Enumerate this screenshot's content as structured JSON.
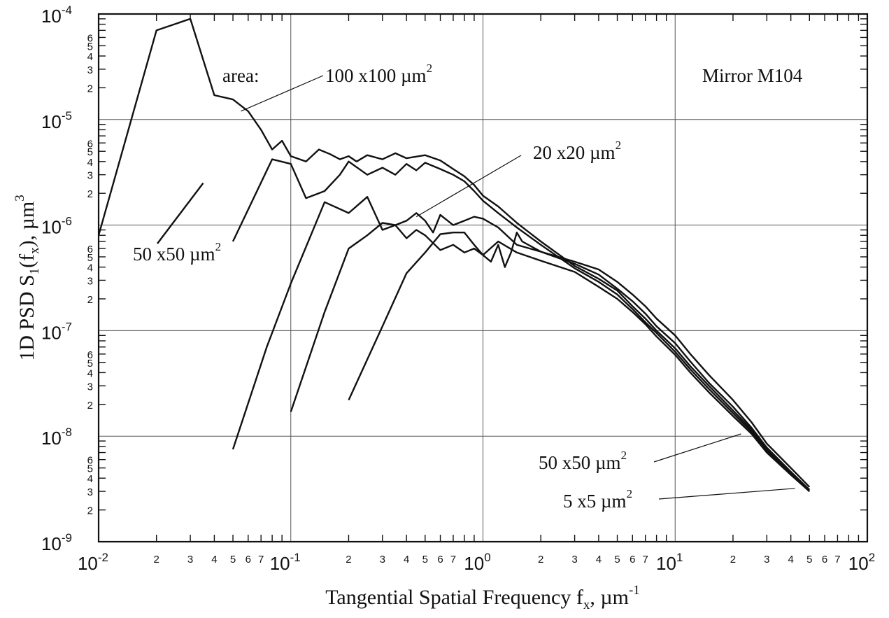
{
  "chart_data": {
    "type": "line",
    "title": "",
    "xscale": "log",
    "yscale": "log",
    "xlim": [
      0.01,
      100
    ],
    "ylim": [
      1e-09,
      0.0001
    ],
    "grid": "major decades",
    "x_tick_labels": [
      {
        "base": "10",
        "exp": "-2",
        "value": 0.01
      },
      {
        "base": "10",
        "exp": "-1",
        "value": 0.1
      },
      {
        "base": "10",
        "exp": "0",
        "value": 1
      },
      {
        "base": "10",
        "exp": "1",
        "value": 10
      },
      {
        "base": "10",
        "exp": "2",
        "value": 100
      }
    ],
    "y_tick_labels": [
      {
        "base": "10",
        "exp": "-9",
        "value": 1e-09
      },
      {
        "base": "10",
        "exp": "-8",
        "value": 1e-08
      },
      {
        "base": "10",
        "exp": "-7",
        "value": 1e-07
      },
      {
        "base": "10",
        "exp": "-6",
        "value": 1e-06
      },
      {
        "base": "10",
        "exp": "-5",
        "value": 1e-05
      },
      {
        "base": "10",
        "exp": "-4",
        "value": 0.0001
      }
    ],
    "x_minor_labels": [
      "2",
      "3",
      "4",
      "5",
      "6",
      "7"
    ],
    "y_minor_labels": [
      "2",
      "3",
      "5"
    ],
    "xlabel": {
      "text": "Tangential Spatial Frequency f",
      "sub": "x",
      "tail": ", µm",
      "sup": "-1"
    },
    "ylabel": {
      "a": "1D PSD S",
      "sub1": "1",
      "b": "(f",
      "sub2": "x",
      "c": "), µm",
      "sup": "3"
    },
    "annotations": {
      "inset_label": "Mirror M104",
      "area_label": "area:",
      "label_100": {
        "text": "100 x100 µm",
        "sup": "2"
      },
      "label_50_top": {
        "text": "50 x50 µm",
        "sup": "2"
      },
      "label_20": {
        "text": "20 x20 µm",
        "sup": "2"
      },
      "label_50_bottom": {
        "text": "50 x50 µm",
        "sup": "2"
      },
      "label_5": {
        "text": "5 x5 µm",
        "sup": "2"
      }
    },
    "series": [
      {
        "x": [
          0.01,
          0.02,
          0.03,
          0.04,
          0.05,
          0.06,
          0.07,
          0.08,
          0.09,
          0.1,
          0.12,
          0.14,
          0.16,
          0.18,
          0.2,
          0.22,
          0.25,
          0.3,
          0.35,
          0.4,
          0.5,
          0.6,
          0.7,
          0.8,
          0.9,
          1.0,
          1.2,
          1.5,
          2,
          3,
          4,
          5,
          6,
          7,
          8,
          10,
          12,
          15,
          20,
          25,
          30,
          40,
          50
        ],
        "y": [
          8e-07,
          7e-05,
          9e-05,
          1.7e-05,
          1.55e-05,
          1.2e-05,
          8e-06,
          5.2e-06,
          6.3e-06,
          4.5e-06,
          4e-06,
          5.2e-06,
          4.7e-06,
          4.2e-06,
          4.5e-06,
          4e-06,
          4.6e-06,
          4.2e-06,
          4.8e-06,
          4.3e-06,
          4.6e-06,
          4.1e-06,
          3.4e-06,
          2.9e-06,
          2.4e-06,
          1.9e-06,
          1.5e-06,
          1.05e-06,
          7e-07,
          4.1e-07,
          3.1e-07,
          2.4e-07,
          1.7e-07,
          1.3e-07,
          1e-07,
          6.8e-08,
          4.6e-08,
          3e-08,
          1.75e-08,
          1.15e-08,
          7.5e-09,
          4.5e-09,
          3.1e-09
        ]
      },
      {
        "x": [
          0.05,
          0.08,
          0.1,
          0.12,
          0.15,
          0.18,
          0.2,
          0.25,
          0.3,
          0.35,
          0.4,
          0.45,
          0.5,
          0.6,
          0.7,
          0.8,
          0.9,
          1.0,
          1.2,
          1.5,
          2,
          3,
          4,
          5,
          6,
          7,
          8,
          10,
          12,
          15,
          20,
          25,
          30,
          40,
          50
        ],
        "y": [
          7e-07,
          4.2e-06,
          3.8e-06,
          1.8e-06,
          2.1e-06,
          3e-06,
          4e-06,
          3e-06,
          3.5e-06,
          3e-06,
          3.8e-06,
          3.3e-06,
          3.9e-06,
          3.4e-06,
          3e-06,
          2.6e-06,
          2.1e-06,
          1.7e-06,
          1.3e-06,
          9.5e-07,
          6.5e-07,
          3.9e-07,
          2.9e-07,
          2.2e-07,
          1.6e-07,
          1.2e-07,
          9.5e-08,
          6.3e-08,
          4.3e-08,
          2.8e-08,
          1.65e-08,
          1.1e-08,
          7.2e-09,
          4.4e-09,
          3e-09
        ]
      },
      {
        "x": [
          0.05,
          0.075,
          0.1,
          0.15,
          0.2,
          0.25,
          0.3,
          0.35,
          0.4,
          0.45,
          0.5,
          0.6,
          0.7,
          0.8,
          0.9,
          1.0,
          1.2,
          1.5,
          2,
          3,
          4,
          5,
          6,
          7,
          8,
          10,
          12,
          15,
          20,
          25,
          30,
          40,
          50
        ],
        "y": [
          7.5e-09,
          7e-08,
          2.8e-07,
          1.65e-06,
          1.3e-06,
          1.85e-06,
          9e-07,
          1e-06,
          7.5e-07,
          9e-07,
          8e-07,
          5.8e-07,
          6.5e-07,
          5.5e-07,
          6e-07,
          5.2e-07,
          7e-07,
          5.5e-07,
          4.6e-07,
          3.6e-07,
          2.6e-07,
          2e-07,
          1.5e-07,
          1.15e-07,
          8.8e-08,
          5.9e-08,
          4e-08,
          2.6e-08,
          1.55e-08,
          1.05e-08,
          7e-09,
          4.3e-09,
          3e-09
        ]
      },
      {
        "x": [
          0.1,
          0.15,
          0.2,
          0.25,
          0.3,
          0.35,
          0.4,
          0.45,
          0.5,
          0.55,
          0.6,
          0.7,
          0.8,
          0.9,
          1.0,
          1.2,
          1.5,
          2,
          3,
          4,
          5,
          6,
          7,
          8,
          10,
          12,
          15,
          20,
          25,
          30,
          40,
          50
        ],
        "y": [
          1.7e-08,
          1.5e-07,
          6e-07,
          8e-07,
          1.05e-06,
          1e-06,
          1.1e-06,
          1.3e-06,
          1.1e-06,
          8.5e-07,
          1.25e-06,
          1e-06,
          1.1e-06,
          1.2e-06,
          1.15e-06,
          9.5e-07,
          6.5e-07,
          5.6e-07,
          4.3e-07,
          3.4e-07,
          2.5e-07,
          1.9e-07,
          1.45e-07,
          1.1e-07,
          7.6e-08,
          5.1e-08,
          3.2e-08,
          1.9e-08,
          1.2e-08,
          7.8e-09,
          4.6e-09,
          3.1e-09
        ]
      },
      {
        "x": [
          0.2,
          0.3,
          0.4,
          0.5,
          0.6,
          0.7,
          0.8,
          0.9,
          1.0,
          1.1,
          1.2,
          1.3,
          1.4,
          1.5,
          1.6,
          2,
          3,
          4,
          5,
          6,
          7,
          8,
          10,
          12,
          15,
          20,
          25,
          30,
          40,
          50
        ],
        "y": [
          2.2e-08,
          1.1e-07,
          3.5e-07,
          5.5e-07,
          8.2e-07,
          8.5e-07,
          8.5e-07,
          6.5e-07,
          5.2e-07,
          4.5e-07,
          6.5e-07,
          4e-07,
          5.5e-07,
          8.5e-07,
          7e-07,
          5.6e-07,
          4.5e-07,
          3.8e-07,
          2.9e-07,
          2.2e-07,
          1.7e-07,
          1.3e-07,
          9e-08,
          6e-08,
          3.8e-08,
          2.2e-08,
          1.35e-08,
          8.5e-09,
          5e-09,
          3.3e-09
        ]
      }
    ],
    "leaders": [
      {
        "name": "leader-100",
        "from": [
          0.055,
          1.2e-05
        ],
        "to_label": "label_100"
      },
      {
        "name": "leader-20",
        "from": [
          0.45,
          1.2e-06
        ],
        "to_label": "label_20"
      },
      {
        "name": "leader-50-bottom",
        "from": [
          22,
          1.05e-08
        ],
        "to_label": "label_50_bottom"
      },
      {
        "name": "leader-5",
        "from": [
          42,
          3.2e-09
        ],
        "to_label": "label_5"
      }
    ]
  }
}
